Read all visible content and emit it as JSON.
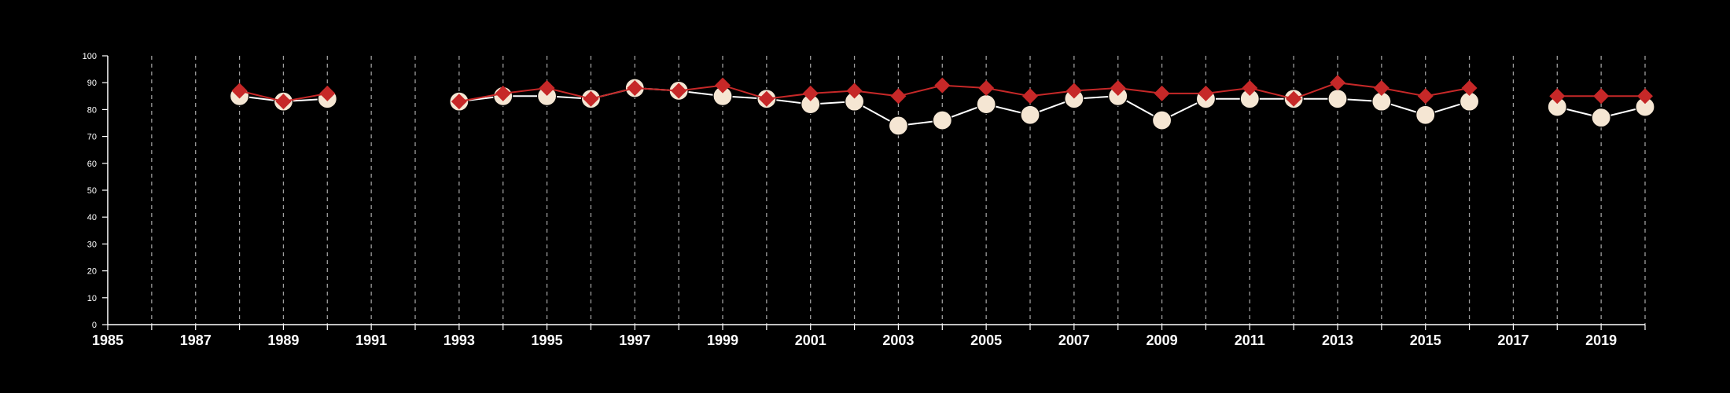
{
  "chart_data": {
    "type": "line",
    "title": "",
    "xlabel": "",
    "ylabel": "",
    "xlim": [
      1985,
      2020
    ],
    "ylim": [
      0,
      100
    ],
    "x_ticks": [
      "1985",
      "1987",
      "1989",
      "1991",
      "1993",
      "1995",
      "1997",
      "1999",
      "2001",
      "2003",
      "2005",
      "2007",
      "2009",
      "2011",
      "2013",
      "2015",
      "2017",
      "2019"
    ],
    "y_ticks": [
      "0",
      "10",
      "20",
      "30",
      "40",
      "50",
      "60",
      "70",
      "80",
      "90",
      "100"
    ],
    "grid": "vertical dashed lines at each year",
    "legend": "none",
    "series": [
      {
        "marker": "circle",
        "color": "#f5e6d3",
        "line_color": "#ffffff",
        "points": [
          [
            1988,
            85
          ],
          [
            1989,
            83
          ],
          [
            1990,
            84
          ],
          [
            1993,
            83
          ],
          [
            1994,
            85
          ],
          [
            1995,
            85
          ],
          [
            1996,
            84
          ],
          [
            1997,
            88
          ],
          [
            1998,
            87
          ],
          [
            1999,
            85
          ],
          [
            2000,
            84
          ],
          [
            2001,
            82
          ],
          [
            2002,
            83
          ],
          [
            2003,
            74
          ],
          [
            2004,
            76
          ],
          [
            2005,
            82
          ],
          [
            2006,
            78
          ],
          [
            2007,
            84
          ],
          [
            2008,
            85
          ],
          [
            2009,
            76
          ],
          [
            2010,
            84
          ],
          [
            2011,
            84
          ],
          [
            2012,
            84
          ],
          [
            2013,
            84
          ],
          [
            2014,
            83
          ],
          [
            2015,
            78
          ],
          [
            2016,
            83
          ],
          [
            2018,
            81
          ],
          [
            2019,
            77
          ],
          [
            2020,
            81
          ]
        ]
      },
      {
        "marker": "diamond",
        "color": "#c62828",
        "line_color": "#c62828",
        "points": [
          [
            1988,
            87
          ],
          [
            1989,
            83
          ],
          [
            1990,
            86
          ],
          [
            1993,
            83
          ],
          [
            1994,
            86
          ],
          [
            1995,
            88
          ],
          [
            1996,
            84
          ],
          [
            1997,
            88
          ],
          [
            1998,
            87
          ],
          [
            1999,
            89
          ],
          [
            2000,
            84
          ],
          [
            2001,
            86
          ],
          [
            2002,
            87
          ],
          [
            2003,
            85
          ],
          [
            2004,
            89
          ],
          [
            2005,
            88
          ],
          [
            2006,
            85
          ],
          [
            2007,
            87
          ],
          [
            2008,
            88
          ],
          [
            2009,
            86
          ],
          [
            2010,
            86
          ],
          [
            2011,
            88
          ],
          [
            2012,
            84
          ],
          [
            2013,
            90
          ],
          [
            2014,
            88
          ],
          [
            2015,
            85
          ],
          [
            2016,
            88
          ],
          [
            2018,
            85
          ],
          [
            2019,
            85
          ],
          [
            2020,
            85
          ]
        ]
      }
    ]
  },
  "colors": {
    "background": "#000000",
    "axis": "#ffffff",
    "grid": "#9e9e9e"
  }
}
